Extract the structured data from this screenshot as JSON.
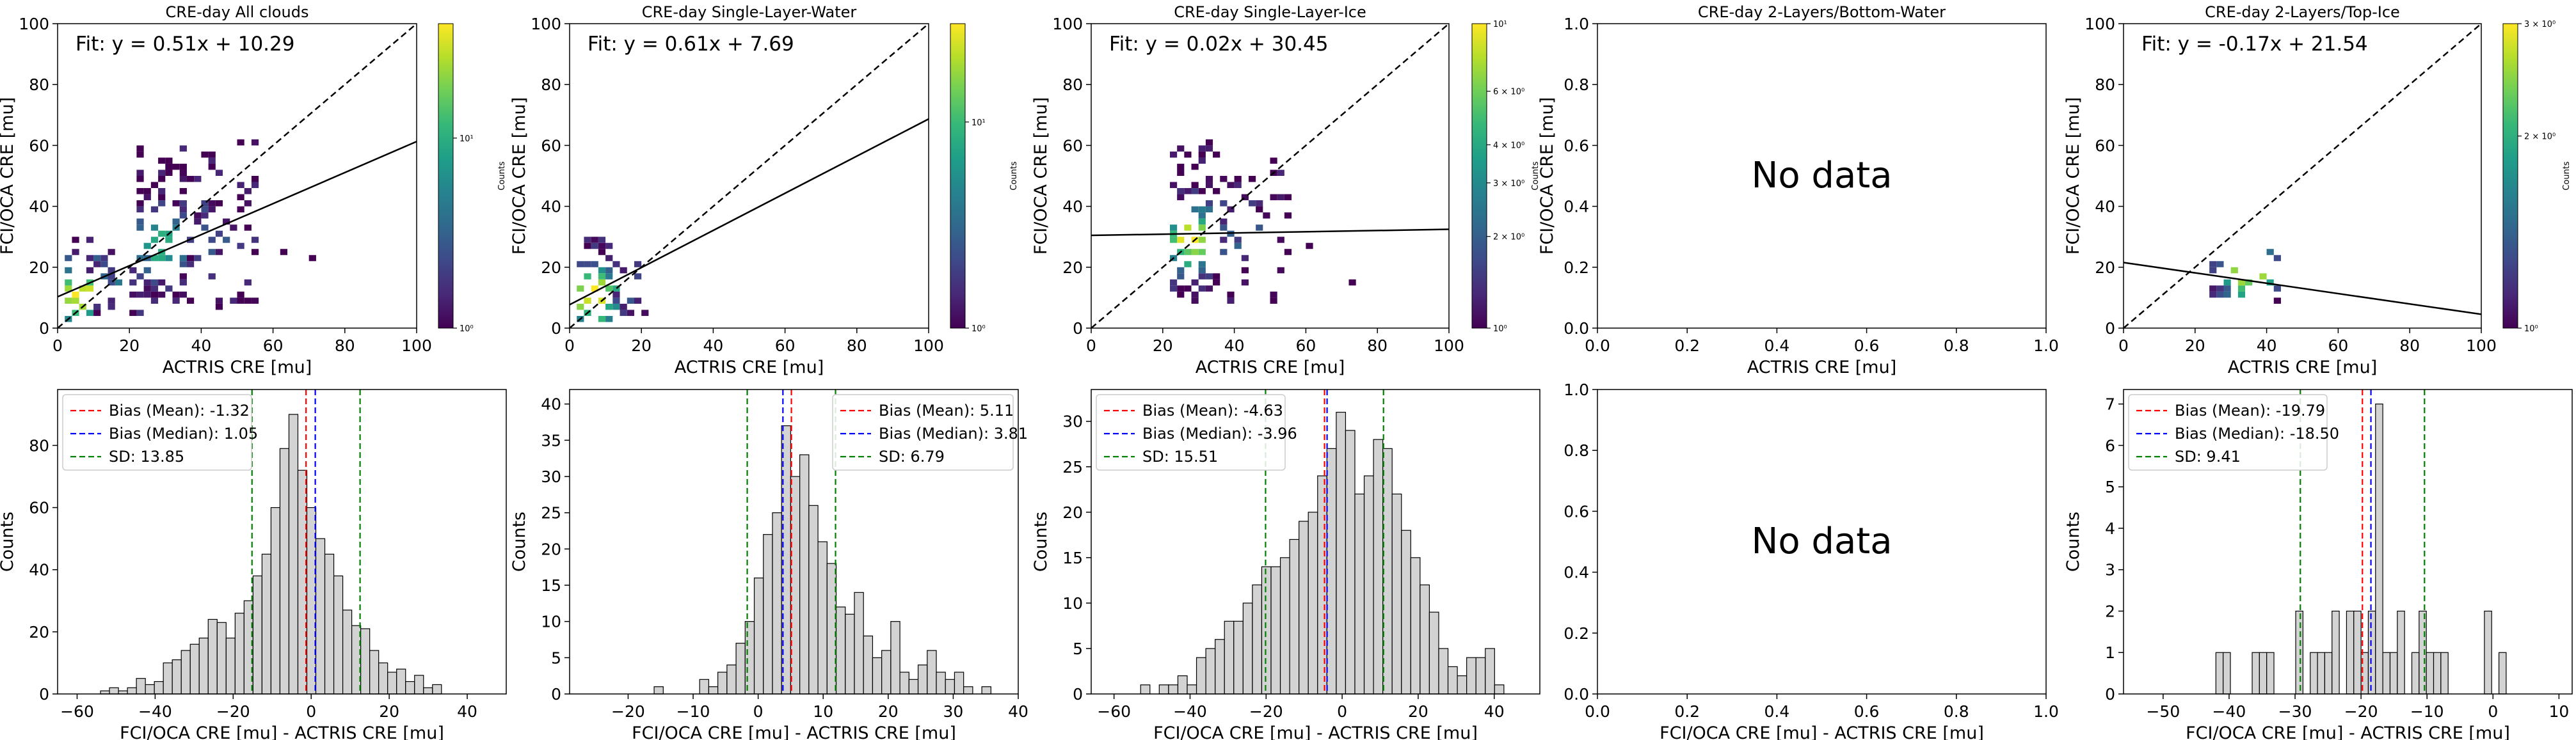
{
  "figure": {
    "no_data_text": "No data"
  },
  "chart_data": [
    {
      "id": "scatter-all",
      "type": "heatmap",
      "title": "CRE-day All clouds",
      "xlabel": "ACTRIS CRE [mu]",
      "ylabel": "FCI/OCA CRE [mu]",
      "xlim": [
        0,
        100
      ],
      "ylim": [
        0,
        100
      ],
      "xticks": [
        0,
        20,
        40,
        60,
        80,
        100
      ],
      "yticks": [
        0,
        20,
        40,
        60,
        80,
        100
      ],
      "fit": {
        "label": "Fit: y = 0.51x + 10.29",
        "slope": 0.51,
        "intercept": 10.29
      },
      "one_to_one": true,
      "colorbar": {
        "label": "Counts",
        "scale": "log",
        "range": [
          1,
          40
        ],
        "ticks": [
          {
            "value": 1,
            "label": "10⁰"
          },
          {
            "value": 10,
            "label": "10¹"
          }
        ]
      },
      "clusters": [
        {
          "x": [
            2,
            12
          ],
          "y": [
            2,
            30
          ],
          "n": 26,
          "peak": [
            6,
            10
          ],
          "hi": 1.0,
          "seed": 11
        },
        {
          "x": [
            22,
            36
          ],
          "y": [
            8,
            60
          ],
          "n": 80,
          "peak": [
            28,
            26
          ],
          "hi": 0.65,
          "seed": 23
        },
        {
          "x": [
            36,
            56
          ],
          "y": [
            6,
            62
          ],
          "n": 55,
          "peak": [
            42,
            30
          ],
          "hi": 0.25,
          "seed": 37
        },
        {
          "x": [
            8,
            24
          ],
          "y": [
            4,
            26
          ],
          "n": 22,
          "peak": [
            14,
            14
          ],
          "hi": 0.3,
          "seed": 5
        }
      ],
      "single_cells": [
        {
          "x": 71,
          "y": 23
        },
        {
          "x": 62,
          "y": 24
        }
      ]
    },
    {
      "id": "scatter-water",
      "type": "heatmap",
      "title": "CRE-day Single-Layer-Water",
      "xlabel": "ACTRIS CRE [mu]",
      "ylabel": "FCI/OCA CRE [mu]",
      "xlim": [
        0,
        100
      ],
      "ylim": [
        0,
        100
      ],
      "xticks": [
        0,
        20,
        40,
        60,
        80,
        100
      ],
      "yticks": [
        0,
        20,
        40,
        60,
        80,
        100
      ],
      "fit": {
        "label": "Fit: y = 0.61x + 7.69",
        "slope": 0.61,
        "intercept": 7.69
      },
      "one_to_one": true,
      "colorbar": {
        "label": "Counts",
        "scale": "log",
        "range": [
          1,
          30
        ],
        "ticks": [
          {
            "value": 1,
            "label": "10⁰"
          },
          {
            "value": 10,
            "label": "10¹"
          }
        ]
      },
      "clusters": [
        {
          "x": [
            2,
            14
          ],
          "y": [
            2,
            30
          ],
          "n": 40,
          "peak": [
            6,
            9
          ],
          "hi": 1.0,
          "seed": 41
        },
        {
          "x": [
            12,
            22
          ],
          "y": [
            4,
            24
          ],
          "n": 12,
          "peak": [
            14,
            12
          ],
          "hi": 0.2,
          "seed": 43
        }
      ],
      "single_cells": []
    },
    {
      "id": "scatter-ice",
      "type": "heatmap",
      "title": "CRE-day Single-Layer-Ice",
      "xlabel": "ACTRIS CRE [mu]",
      "ylabel": "FCI/OCA CRE [mu]",
      "xlim": [
        0,
        100
      ],
      "ylim": [
        0,
        100
      ],
      "xticks": [
        0,
        20,
        40,
        60,
        80,
        100
      ],
      "yticks": [
        0,
        20,
        40,
        60,
        80,
        100
      ],
      "fit": {
        "label": "Fit: y = 0.02x + 30.45",
        "slope": 0.02,
        "intercept": 30.45
      },
      "one_to_one": true,
      "colorbar": {
        "label": "Counts",
        "scale": "log",
        "range": [
          1,
          10
        ],
        "ticks": [
          {
            "value": 1,
            "label": "10⁰"
          },
          {
            "value": 2,
            "label": "2 × 10⁰"
          },
          {
            "value": 3,
            "label": "3 × 10⁰"
          },
          {
            "value": 4,
            "label": "4 × 10⁰"
          },
          {
            "value": 6,
            "label": "6 × 10⁰"
          },
          {
            "value": 10,
            "label": "10¹"
          }
        ]
      },
      "clusters": [
        {
          "x": [
            22,
            34
          ],
          "y": [
            8,
            62
          ],
          "n": 70,
          "peak": [
            27,
            28
          ],
          "hi": 1.0,
          "seed": 53
        },
        {
          "x": [
            34,
            56
          ],
          "y": [
            8,
            58
          ],
          "n": 45,
          "peak": [
            40,
            30
          ],
          "hi": 0.3,
          "seed": 59
        }
      ],
      "single_cells": [
        {
          "x": 73,
          "y": 14
        },
        {
          "x": 61,
          "y": 26
        }
      ]
    },
    {
      "id": "scatter-bottom-water",
      "type": "heatmap",
      "title": "CRE-day 2-Layers/Bottom-Water",
      "xlabel": "ACTRIS CRE [mu]",
      "ylabel": "FCI/OCA CRE [mu]",
      "xlim": [
        0,
        1
      ],
      "ylim": [
        0,
        1
      ],
      "xticks": [
        0.0,
        0.2,
        0.4,
        0.6,
        0.8,
        1.0
      ],
      "yticks": [
        0.0,
        0.2,
        0.4,
        0.6,
        0.8,
        1.0
      ],
      "tick_format": "fixed1",
      "no_data": true
    },
    {
      "id": "scatter-top-ice",
      "type": "heatmap",
      "title": "CRE-day 2-Layers/Top-Ice",
      "xlabel": "ACTRIS CRE [mu]",
      "ylabel": "FCI/OCA CRE [mu]",
      "xlim": [
        0,
        100
      ],
      "ylim": [
        0,
        100
      ],
      "xticks": [
        0,
        20,
        40,
        60,
        80,
        100
      ],
      "yticks": [
        0,
        20,
        40,
        60,
        80,
        100
      ],
      "fit": {
        "label": "Fit: y = -0.17x + 21.54",
        "slope": -0.17,
        "intercept": 21.54
      },
      "one_to_one": true,
      "colorbar": {
        "label": "Counts",
        "scale": "log",
        "range": [
          1,
          3
        ],
        "ticks": [
          {
            "value": 1,
            "label": "10⁰"
          },
          {
            "value": 2,
            "label": "2 × 10⁰"
          },
          {
            "value": 3,
            "label": "3 × 10⁰"
          }
        ]
      },
      "clusters": [
        {
          "x": [
            24,
            46
          ],
          "y": [
            10,
            26
          ],
          "n": 22,
          "peak": [
            34,
            18
          ],
          "hi": 1.0,
          "seed": 67
        }
      ],
      "single_cells": [
        {
          "x": 42,
          "y": 8
        }
      ]
    },
    {
      "id": "hist-all",
      "type": "bar",
      "xlabel": "FCI/OCA CRE [mu] - ACTRIS CRE [mu]",
      "ylabel": "Counts",
      "xlim": [
        -65,
        50
      ],
      "ylim": [
        0,
        98
      ],
      "xticks": [
        -60,
        -40,
        -20,
        0,
        20,
        40
      ],
      "yticks": [
        0,
        20,
        40,
        60,
        80
      ],
      "bin_start": -54,
      "bin_width": 2.3,
      "counts": [
        1,
        2,
        1,
        2,
        5,
        3,
        4,
        10,
        11,
        14,
        16,
        18,
        24,
        23,
        18,
        26,
        30,
        38,
        45,
        60,
        79,
        90,
        72,
        60,
        50,
        45,
        38,
        27,
        22,
        21,
        14,
        10,
        7,
        8,
        4,
        6,
        2,
        3
      ],
      "legend": [
        {
          "label": "Bias (Mean): -1.32",
          "value": -1.32,
          "color": "#ff0000"
        },
        {
          "label": "Bias (Median): 1.05",
          "value": 1.05,
          "color": "#0000ff"
        },
        {
          "label": "SD: 13.85",
          "value": 13.85,
          "color": "#008000"
        }
      ],
      "sd_lines": [
        -15.17,
        12.53
      ],
      "legend_position": "upper-left"
    },
    {
      "id": "hist-water",
      "type": "bar",
      "xlabel": "FCI/OCA CRE [mu] - ACTRIS CRE [mu]",
      "ylabel": "Counts",
      "xlim": [
        -29,
        40
      ],
      "ylim": [
        0,
        42
      ],
      "xticks": [
        -20,
        -10,
        0,
        10,
        20,
        30,
        40
      ],
      "yticks": [
        0,
        5,
        10,
        15,
        20,
        25,
        30,
        35,
        40
      ],
      "bin_start": -16,
      "bin_width": 1.4,
      "counts": [
        1,
        0,
        0,
        0,
        0,
        2,
        1,
        3,
        4,
        7,
        10,
        16,
        22,
        25,
        37,
        30,
        33,
        26,
        21,
        18,
        12,
        11,
        14,
        8,
        5,
        6,
        10,
        3,
        2,
        4,
        6,
        3,
        2,
        3,
        1,
        0,
        1
      ],
      "legend": [
        {
          "label": "Bias (Mean): 5.11",
          "value": 5.11,
          "color": "#ff0000"
        },
        {
          "label": "Bias (Median): 3.81",
          "value": 3.81,
          "color": "#0000ff"
        },
        {
          "label": "SD: 6.79",
          "value": 6.79,
          "color": "#008000"
        }
      ],
      "sd_lines": [
        -1.68,
        11.9
      ],
      "legend_position": "upper-right"
    },
    {
      "id": "hist-ice",
      "type": "bar",
      "xlabel": "FCI/OCA CRE [mu] - ACTRIS CRE [mu]",
      "ylabel": "Counts",
      "xlim": [
        -66,
        52
      ],
      "ylim": [
        0,
        33.5
      ],
      "xticks": [
        -60,
        -40,
        -20,
        0,
        20,
        40
      ],
      "yticks": [
        0,
        5,
        10,
        15,
        20,
        25,
        30
      ],
      "bin_start": -53,
      "bin_width": 2.45,
      "counts": [
        1,
        0,
        1,
        1,
        2,
        1,
        4,
        5,
        6,
        8,
        8,
        10,
        12,
        14,
        14,
        15,
        17,
        19,
        20,
        24,
        27,
        31,
        29,
        22,
        24,
        28,
        27,
        22,
        18,
        15,
        12,
        9,
        5,
        3,
        2,
        4,
        4,
        5,
        1
      ],
      "legend": [
        {
          "label": "Bias (Mean): -4.63",
          "value": -4.63,
          "color": "#ff0000"
        },
        {
          "label": "Bias (Median): -3.96",
          "value": -3.96,
          "color": "#0000ff"
        },
        {
          "label": "SD: 15.51",
          "value": 15.51,
          "color": "#008000"
        }
      ],
      "sd_lines": [
        -20.14,
        10.88
      ],
      "legend_position": "upper-left"
    },
    {
      "id": "hist-bottom-water",
      "type": "bar",
      "xlabel": "FCI/OCA CRE [mu] - ACTRIS CRE [mu]",
      "ylabel": "",
      "xlim": [
        0,
        1
      ],
      "ylim": [
        0,
        1
      ],
      "xticks": [
        0.0,
        0.2,
        0.4,
        0.6,
        0.8,
        1.0
      ],
      "yticks": [
        0.0,
        0.2,
        0.4,
        0.6,
        0.8,
        1.0
      ],
      "tick_format": "fixed1",
      "no_data": true
    },
    {
      "id": "hist-top-ice",
      "type": "bar",
      "xlabel": "FCI/OCA CRE [mu] - ACTRIS CRE [mu]",
      "ylabel": "Counts",
      "xlim": [
        -56,
        12
      ],
      "ylim": [
        0,
        7.35
      ],
      "xticks": [
        -50,
        -40,
        -30,
        -20,
        -10,
        0,
        10
      ],
      "yticks": [
        0,
        1,
        2,
        3,
        4,
        5,
        6,
        7
      ],
      "bin_start": -42,
      "bin_width": 1.1,
      "counts": [
        1,
        1,
        0,
        0,
        0,
        1,
        1,
        1,
        0,
        0,
        0,
        2,
        0,
        1,
        1,
        1,
        2,
        0,
        2,
        2,
        1,
        2,
        7,
        1,
        1,
        2,
        0,
        1,
        2,
        1,
        1,
        1,
        0,
        0,
        0,
        0,
        0,
        2,
        0,
        1
      ],
      "legend": [
        {
          "label": "Bias (Mean): -19.79",
          "value": -19.79,
          "color": "#ff0000"
        },
        {
          "label": "Bias (Median): -18.50",
          "value": -18.5,
          "color": "#0000ff"
        },
        {
          "label": "SD: 9.41",
          "value": 9.41,
          "color": "#008000"
        }
      ],
      "sd_lines": [
        -29.2,
        -10.38
      ],
      "legend_position": "upper-left"
    }
  ]
}
